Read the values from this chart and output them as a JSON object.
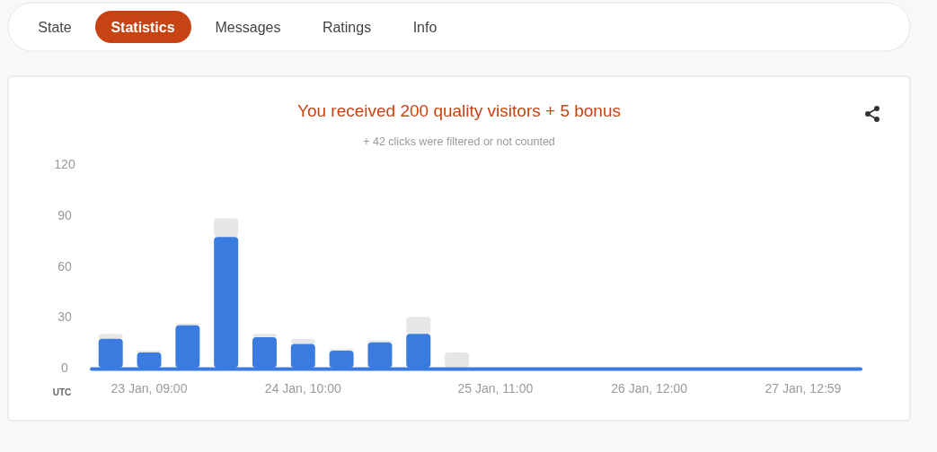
{
  "chart_data": {
    "type": "bar",
    "title": "You received 200 quality visitors + 5 bonus",
    "subtitle": "+ 42 clicks were filtered or not counted",
    "xlabel": "UTC",
    "annotations": [
      "State",
      "Statistics",
      "Messages",
      "Ratings",
      "Info"
    ],
    "categories": [
      null,
      "23 Jan, 09:00",
      null,
      null,
      null,
      "24 Jan, 10:00",
      null,
      null,
      null,
      null,
      "25 Jan, 11:00",
      null,
      null,
      null,
      "26 Jan, 12:00",
      null,
      null,
      null,
      "27 Jan, 12:59",
      null
    ],
    "stacked": true,
    "series": [
      {
        "color": "#3a7be0",
        "values": [
          17,
          9,
          25,
          77,
          18,
          14,
          10,
          15,
          20,
          0,
          0,
          0,
          0,
          0,
          0,
          0,
          0,
          0,
          0,
          0
        ]
      },
      {
        "color": "#e6e6e6",
        "values": [
          3,
          1,
          1,
          11,
          2,
          3,
          1,
          1,
          10,
          9,
          0,
          0,
          0,
          0,
          0,
          0,
          0,
          0,
          0,
          0
        ]
      }
    ],
    "ylim": [
      0,
      120
    ],
    "yticks": [
      0,
      30,
      60,
      90,
      120
    ],
    "grid": false
  }
}
